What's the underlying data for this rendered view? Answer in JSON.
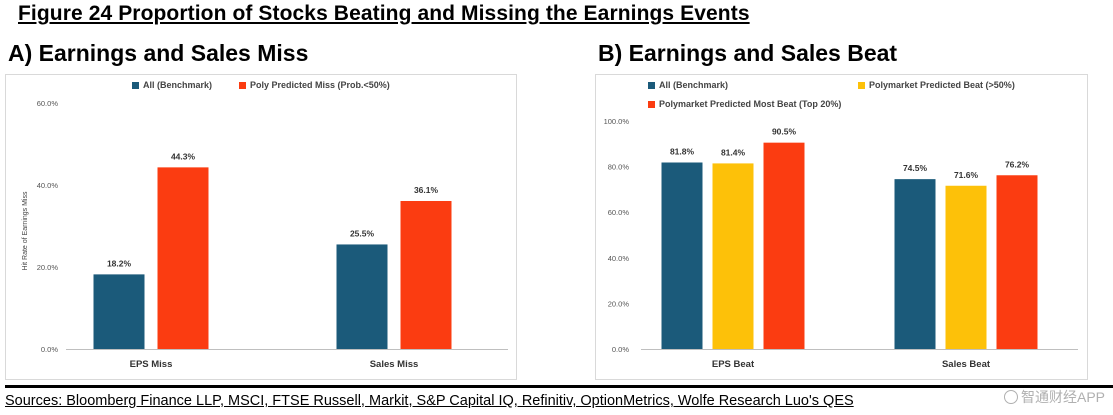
{
  "figure_title": "Figure 24 Proportion of Stocks Beating and Missing the Earnings Events",
  "panels": {
    "a": {
      "title": "A) Earnings and Sales Miss"
    },
    "b": {
      "title": "B) Earnings and Sales Beat"
    }
  },
  "footer": {
    "sources": "Sources: Bloomberg Finance LLP, MSCI, FTSE Russell, Markit, S&P Capital IQ, Refinitiv, OptionMetrics, Wolfe Research Luo's QES",
    "watermark": "智通财经APP"
  },
  "chart_data": [
    {
      "type": "bar",
      "title": "A) Earnings and Sales Miss",
      "categories": [
        "EPS Miss",
        "Sales Miss"
      ],
      "series": [
        {
          "name": "All (Benchmark)",
          "color": "#1b5a7a",
          "values": [
            18.2,
            25.5
          ],
          "labels": [
            "18.2%",
            "25.5%"
          ]
        },
        {
          "name": "Poly Predicted Miss (Prob.<50%)",
          "color": "#fb3c11",
          "values": [
            44.3,
            36.1
          ],
          "labels": [
            "44.3%",
            "36.1%"
          ]
        }
      ],
      "ylabel": "Hit Rate of Earnings Miss",
      "xlabel": "",
      "ylim": [
        0,
        60
      ],
      "yticks": [
        0,
        20,
        40,
        60
      ],
      "ytick_labels": [
        "0.0%",
        "20.0%",
        "40.0%",
        "60.0%"
      ],
      "grid": false,
      "legend_position": "top-left"
    },
    {
      "type": "bar",
      "title": "B) Earnings and Sales Beat",
      "categories": [
        "EPS Beat",
        "Sales Beat"
      ],
      "series": [
        {
          "name": "All (Benchmark)",
          "color": "#1b5a7a",
          "values": [
            81.8,
            74.5
          ],
          "labels": [
            "81.8%",
            "74.5%"
          ]
        },
        {
          "name": "Polymarket Predicted Beat (>50%)",
          "color": "#fdc109",
          "values": [
            81.4,
            71.6
          ],
          "labels": [
            "81.4%",
            "71.6%"
          ]
        },
        {
          "name": "Polymarket  Predicted Most Beat (Top 20%)",
          "color": "#fb3c11",
          "values": [
            90.5,
            76.2
          ],
          "labels": [
            "90.5%",
            "76.2%"
          ]
        }
      ],
      "ylabel": "",
      "xlabel": "",
      "ylim": [
        0,
        100
      ],
      "yticks": [
        0,
        20,
        40,
        60,
        80,
        100
      ],
      "ytick_labels": [
        "0.0%",
        "20.0%",
        "40.0%",
        "60.0%",
        "80.0%",
        "100.0%"
      ],
      "grid": false,
      "legend_position": "top-left"
    }
  ]
}
